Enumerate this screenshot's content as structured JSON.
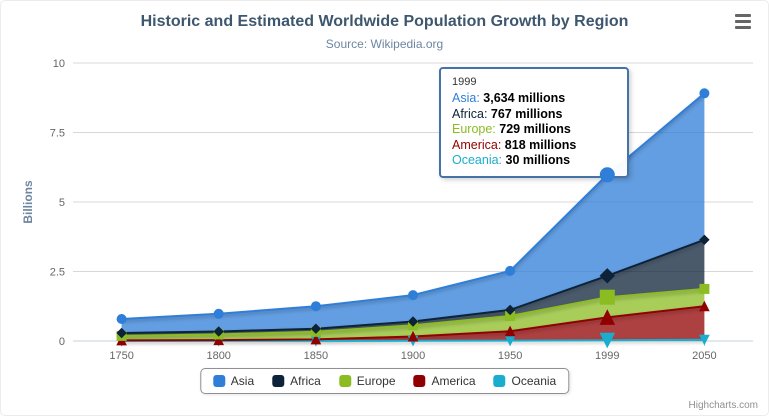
{
  "chart": {
    "title": "Historic and Estimated Worldwide Population Growth by Region",
    "subtitle": "Source: Wikipedia.org",
    "credits": "Highcharts.com"
  },
  "chart_data": {
    "type": "area",
    "stacked": true,
    "title": "Historic and Estimated Worldwide Population Growth by Region",
    "subtitle": "Source: Wikipedia.org",
    "categories": [
      "1750",
      "1800",
      "1850",
      "1900",
      "1950",
      "1999",
      "2050"
    ],
    "xlabel": "",
    "ylabel": "Billions",
    "ylim": [
      0,
      10
    ],
    "yticks": [
      0,
      2.5,
      5,
      7.5,
      10
    ],
    "values_unit": "millions",
    "y_axis_unit": "billions",
    "grid": true,
    "legend_position": "bottom",
    "series": [
      {
        "name": "Asia",
        "color": "#2f7ed8",
        "marker": "circle",
        "values": [
          502,
          635,
          809,
          947,
          1402,
          3634,
          5268
        ]
      },
      {
        "name": "Africa",
        "color": "#0d233a",
        "marker": "diamond",
        "values": [
          106,
          107,
          111,
          133,
          221,
          767,
          1766
        ]
      },
      {
        "name": "Europe",
        "color": "#8bbc21",
        "marker": "square",
        "values": [
          163,
          203,
          276,
          408,
          547,
          729,
          628
        ]
      },
      {
        "name": "America",
        "color": "#910000",
        "marker": "triangle",
        "values": [
          18,
          31,
          54,
          156,
          339,
          818,
          1201
        ]
      },
      {
        "name": "Oceania",
        "color": "#1aadce",
        "marker": "triangle-down",
        "values": [
          2,
          2,
          2,
          6,
          13,
          30,
          46
        ]
      }
    ]
  },
  "tooltip": {
    "header": "1999",
    "hover_index": 5,
    "border_color": "#4572A7",
    "rows": [
      {
        "name": "Asia",
        "value": "3,634 millions",
        "color": "#2f7ed8"
      },
      {
        "name": "Africa",
        "value": "767 millions",
        "color": "#0d233a"
      },
      {
        "name": "Europe",
        "value": "729 millions",
        "color": "#8bbc21"
      },
      {
        "name": "America",
        "value": "818 millions",
        "color": "#910000"
      },
      {
        "name": "Oceania",
        "value": "30 millions",
        "color": "#1aadce"
      }
    ]
  }
}
